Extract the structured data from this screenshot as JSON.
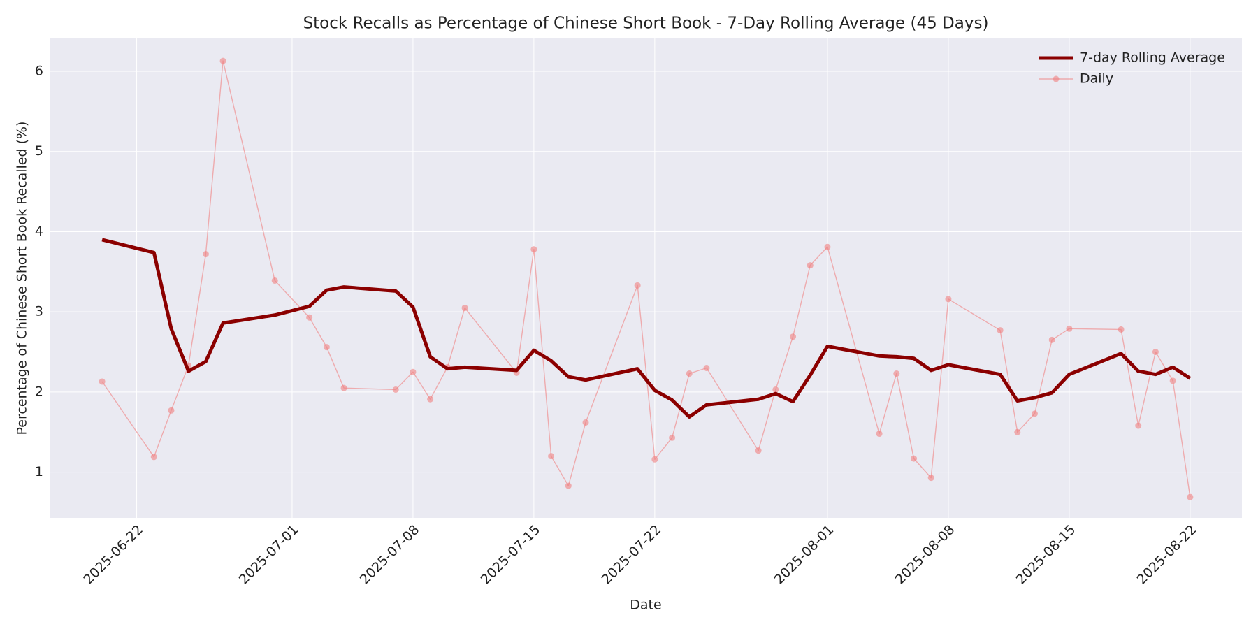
{
  "chart_data": {
    "type": "line",
    "title": "Stock Recalls as Percentage of Chinese Short Book - 7-Day Rolling Average (45 Days)",
    "x_label": "Date",
    "y_label": "Percentage of Chinese Short Book Recalled (%)",
    "x": [
      "2025-06-20",
      "2025-06-23",
      "2025-06-24",
      "2025-06-25",
      "2025-06-26",
      "2025-06-27",
      "2025-06-30",
      "2025-07-02",
      "2025-07-03",
      "2025-07-04",
      "2025-07-07",
      "2025-07-08",
      "2025-07-09",
      "2025-07-10",
      "2025-07-11",
      "2025-07-14",
      "2025-07-15",
      "2025-07-16",
      "2025-07-17",
      "2025-07-18",
      "2025-07-21",
      "2025-07-22",
      "2025-07-23",
      "2025-07-24",
      "2025-07-25",
      "2025-07-28",
      "2025-07-29",
      "2025-07-30",
      "2025-07-31",
      "2025-08-01",
      "2025-08-04",
      "2025-08-05",
      "2025-08-06",
      "2025-08-07",
      "2025-08-08",
      "2025-08-11",
      "2025-08-12",
      "2025-08-13",
      "2025-08-14",
      "2025-08-15",
      "2025-08-18",
      "2025-08-19",
      "2025-08-20",
      "2025-08-21",
      "2025-08-22"
    ],
    "series": [
      {
        "name": "7-day Rolling Average",
        "color": "#8b0000",
        "line_width": 5,
        "marker": false,
        "values": [
          3.9,
          3.74,
          2.79,
          2.26,
          2.38,
          2.86,
          2.96,
          3.07,
          3.27,
          3.31,
          3.26,
          3.06,
          2.44,
          2.29,
          2.31,
          2.27,
          2.52,
          2.39,
          2.19,
          2.15,
          2.29,
          2.02,
          1.9,
          1.69,
          1.84,
          1.91,
          1.98,
          1.88,
          2.21,
          2.57,
          2.45,
          2.44,
          2.42,
          2.27,
          2.34,
          2.22,
          1.89,
          1.93,
          1.99,
          2.22,
          2.48,
          2.26,
          2.22,
          2.31,
          2.17
        ]
      },
      {
        "name": "Daily",
        "color": "#f08080",
        "line_width": 1.4,
        "marker": true,
        "values": [
          2.13,
          1.19,
          1.77,
          2.33,
          3.72,
          6.13,
          3.39,
          2.93,
          2.56,
          2.05,
          2.03,
          2.25,
          1.91,
          2.31,
          3.05,
          2.24,
          3.78,
          1.2,
          0.83,
          1.62,
          3.33,
          1.16,
          1.43,
          2.23,
          2.3,
          1.27,
          2.03,
          2.69,
          3.58,
          3.81,
          1.48,
          2.23,
          1.17,
          0.93,
          3.16,
          2.77,
          1.5,
          1.73,
          2.65,
          2.79,
          2.78,
          1.58,
          2.5,
          2.14,
          0.69
        ]
      }
    ],
    "xlim": [
      "2025-06-17",
      "2025-08-25"
    ],
    "xticks": [
      "2025-06-22",
      "2025-07-01",
      "2025-07-08",
      "2025-07-15",
      "2025-07-22",
      "2025-08-01",
      "2025-08-08",
      "2025-08-15",
      "2025-08-22"
    ],
    "ylim": [
      0.43,
      6.41
    ],
    "yticks": [
      1,
      2,
      3,
      4,
      5,
      6
    ],
    "grid": true,
    "legend": "upper right"
  }
}
